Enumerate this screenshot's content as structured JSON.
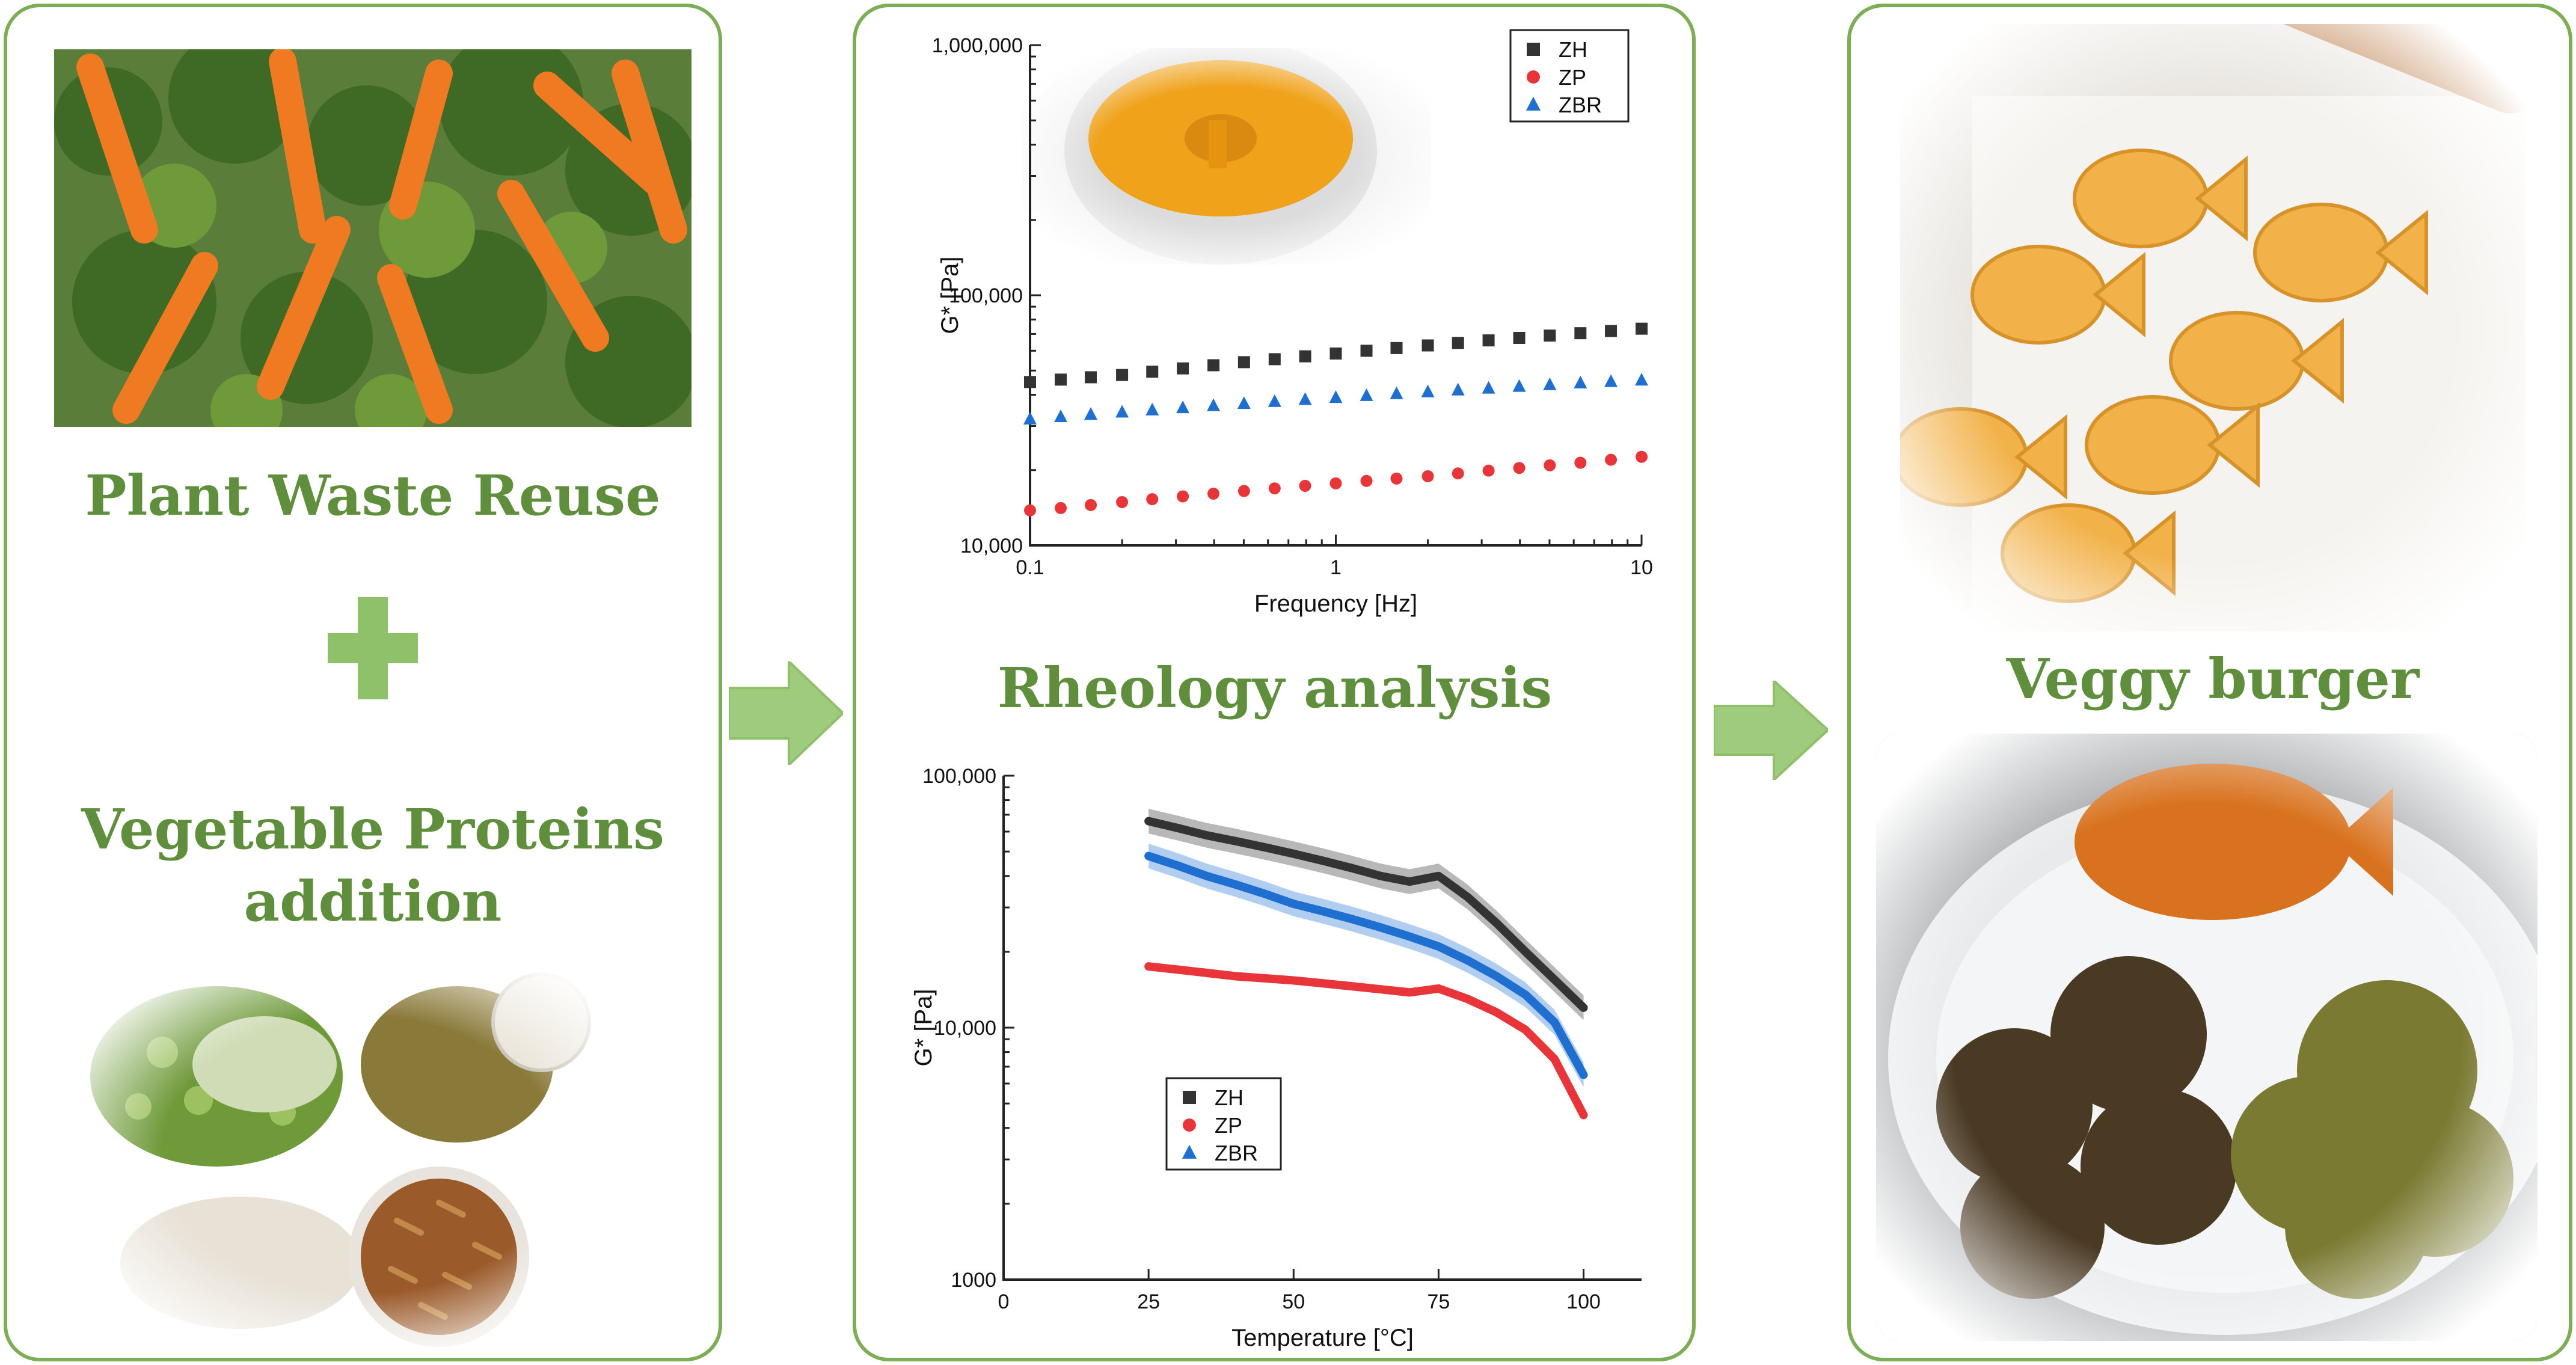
{
  "left_panel": {
    "title_top": "Plant Waste Reuse",
    "title_bottom_line1": "Vegetable Proteins",
    "title_bottom_line2": "addition"
  },
  "middle_panel": {
    "title": "Rheology analysis"
  },
  "right_panel": {
    "title": "Veggy burger"
  },
  "colors": {
    "panel_border": "#7dad55",
    "heading": "#5f8f3c",
    "plus": "#8fc06a",
    "arrow": "#9fcb7c",
    "ZH": "#333333",
    "ZP": "#e8353a",
    "ZBR": "#1f6fd1"
  },
  "icons": [
    "plus-icon",
    "arrow-right-icon"
  ],
  "chart_data": [
    {
      "type": "scatter",
      "title": "",
      "xlabel": "Frequency [Hz]",
      "ylabel": "G* [Pa]",
      "xscale": "log",
      "yscale": "log",
      "xlim": [
        0.1,
        10
      ],
      "ylim": [
        10000,
        1000000
      ],
      "xticks": [
        "0.1",
        "1",
        "10"
      ],
      "yticks": [
        "10,000",
        "100,000",
        "1,000,000"
      ],
      "legend_position": "top-right",
      "x": [
        0.1,
        0.126,
        0.158,
        0.2,
        0.251,
        0.316,
        0.398,
        0.501,
        0.631,
        0.794,
        1.0,
        1.26,
        1.58,
        2.0,
        2.51,
        3.16,
        3.98,
        5.01,
        6.31,
        7.94,
        10.0
      ],
      "series": [
        {
          "name": "ZH",
          "marker": "square",
          "values": [
            45000,
            46000,
            47000,
            48000,
            49500,
            51000,
            52500,
            54000,
            55500,
            57000,
            58500,
            60000,
            61500,
            63000,
            64500,
            66000,
            67500,
            69000,
            70500,
            72000,
            73500
          ]
        },
        {
          "name": "ZP",
          "marker": "circle",
          "values": [
            13800,
            14100,
            14500,
            14900,
            15300,
            15700,
            16100,
            16500,
            16900,
            17300,
            17700,
            18100,
            18500,
            18900,
            19400,
            19900,
            20400,
            20900,
            21400,
            22000,
            22600
          ]
        },
        {
          "name": "ZBR",
          "marker": "triangle",
          "values": [
            32000,
            32700,
            33400,
            34100,
            34800,
            35500,
            36200,
            36900,
            37600,
            38300,
            39000,
            39700,
            40400,
            41100,
            41800,
            42500,
            43200,
            43900,
            44600,
            45200,
            45800
          ]
        }
      ]
    },
    {
      "type": "line",
      "title": "",
      "xlabel": "Temperature [°C]",
      "ylabel": "G* [Pa]",
      "yscale": "log",
      "xlim": [
        0,
        110
      ],
      "ylim": [
        1000,
        100000
      ],
      "xticks": [
        "0",
        "25",
        "50",
        "75",
        "100"
      ],
      "yticks": [
        "1000",
        "10,000",
        "100,000"
      ],
      "legend_position": "bottom-left",
      "x": [
        25,
        30,
        35,
        40,
        45,
        50,
        55,
        60,
        65,
        70,
        75,
        80,
        85,
        90,
        95,
        100
      ],
      "series": [
        {
          "name": "ZH",
          "marker": "square",
          "values": [
            66000,
            62000,
            58000,
            55000,
            52000,
            49000,
            46000,
            43000,
            40000,
            38000,
            40000,
            33000,
            26000,
            20000,
            15500,
            12000
          ]
        },
        {
          "name": "ZP",
          "marker": "circle",
          "values": [
            17500,
            17000,
            16500,
            16000,
            15700,
            15400,
            15000,
            14600,
            14200,
            13800,
            14300,
            13000,
            11500,
            9800,
            7500,
            4500
          ]
        },
        {
          "name": "ZBR",
          "marker": "triangle",
          "values": [
            48000,
            44000,
            40000,
            37000,
            34000,
            31000,
            29000,
            27000,
            25000,
            23000,
            21000,
            18500,
            16000,
            13500,
            10500,
            6500
          ]
        }
      ]
    }
  ]
}
